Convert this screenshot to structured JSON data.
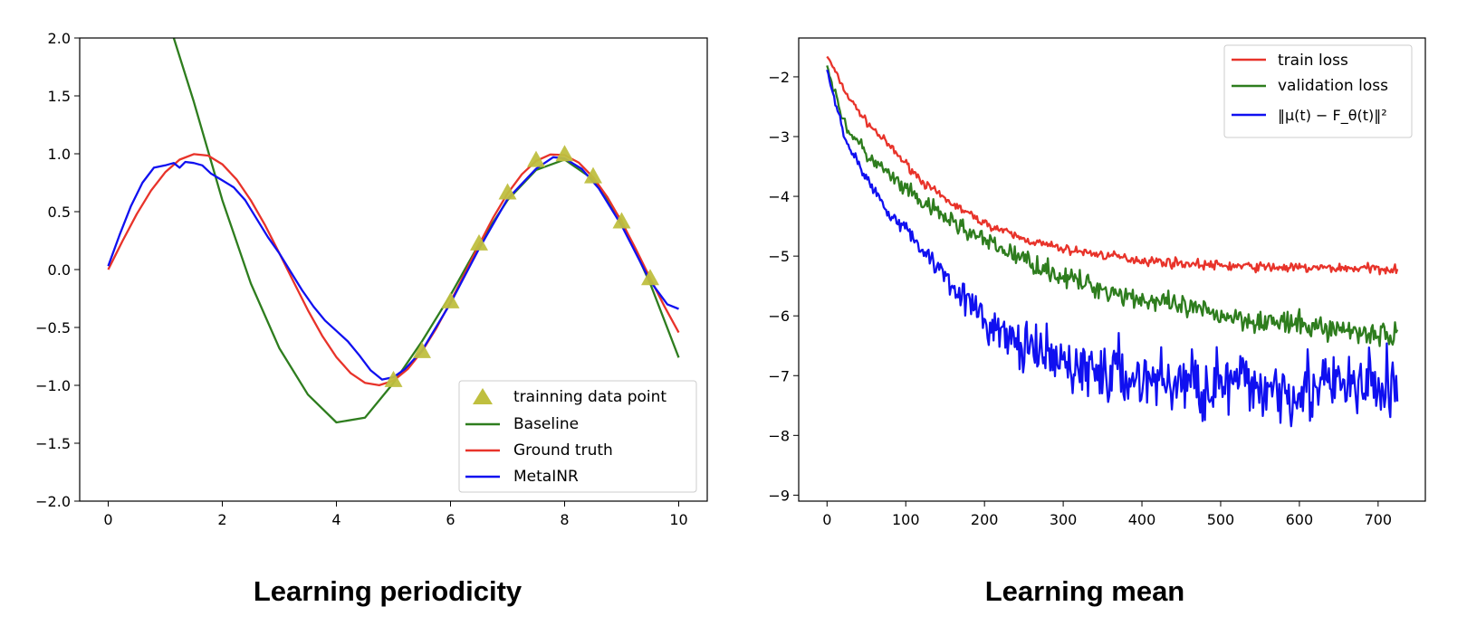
{
  "chart_data": [
    {
      "type": "line",
      "caption": "Learning periodicity",
      "xlim": [
        -0.5,
        10.5
      ],
      "ylim": [
        -2.0,
        2.0
      ],
      "xticks": [
        "0",
        "2",
        "4",
        "6",
        "8",
        "10"
      ],
      "yticks": [
        "2.0",
        "1.5",
        "1.0",
        "0.5",
        "0.0",
        "−0.5",
        "−1.0",
        "−1.5",
        "−2.0"
      ],
      "legend_position": "lower-right",
      "series": [
        {
          "name": "trainning data point",
          "kind": "scatter",
          "marker": "triangle",
          "color": "#bfbf3f",
          "x": [
            5.0,
            5.5,
            6.0,
            6.5,
            7.0,
            7.5,
            8.0,
            8.5,
            9.0,
            9.5
          ],
          "y": [
            -0.96,
            -0.71,
            -0.28,
            0.22,
            0.66,
            0.94,
            0.99,
            0.8,
            0.41,
            -0.08
          ]
        },
        {
          "name": "Baseline",
          "kind": "line",
          "color": "#2e7d1e",
          "x": [
            1.15,
            1.5,
            2.0,
            2.5,
            3.0,
            3.5,
            4.0,
            4.5,
            5.0,
            5.5,
            6.0,
            6.5,
            7.0,
            7.5,
            8.0,
            8.5,
            9.0,
            9.5,
            10.0
          ],
          "y": [
            2.0,
            1.45,
            0.6,
            -0.12,
            -0.68,
            -1.08,
            -1.32,
            -1.28,
            -0.98,
            -0.62,
            -0.22,
            0.22,
            0.6,
            0.86,
            0.95,
            0.78,
            0.42,
            -0.12,
            -0.76
          ]
        },
        {
          "name": "Ground truth",
          "kind": "line",
          "color": "#e8332a",
          "x": [
            0,
            0.25,
            0.5,
            0.75,
            1.0,
            1.25,
            1.5,
            1.75,
            2.0,
            2.25,
            2.5,
            2.75,
            3.0,
            3.25,
            3.5,
            3.75,
            4.0,
            4.25,
            4.5,
            4.75,
            5.0,
            5.25,
            5.5,
            5.75,
            6.0,
            6.25,
            6.5,
            6.75,
            7.0,
            7.25,
            7.5,
            7.75,
            8.0,
            8.25,
            8.5,
            8.75,
            9.0,
            9.25,
            9.5,
            9.75,
            10.0
          ],
          "y": [
            0.0,
            0.247,
            0.479,
            0.682,
            0.841,
            0.949,
            0.997,
            0.984,
            0.909,
            0.778,
            0.598,
            0.382,
            0.141,
            -0.108,
            -0.351,
            -0.572,
            -0.757,
            -0.895,
            -0.978,
            -0.999,
            -0.959,
            -0.859,
            -0.706,
            -0.508,
            -0.279,
            -0.033,
            0.215,
            0.451,
            0.657,
            0.823,
            0.938,
            0.994,
            0.989,
            0.923,
            0.798,
            0.624,
            0.412,
            0.174,
            -0.075,
            -0.319,
            -0.544
          ]
        },
        {
          "name": "MetaINR",
          "kind": "line",
          "color": "#1010f0",
          "x": [
            0,
            0.2,
            0.4,
            0.6,
            0.8,
            1.0,
            1.15,
            1.25,
            1.35,
            1.5,
            1.65,
            1.8,
            2.0,
            2.2,
            2.4,
            2.6,
            2.8,
            3.0,
            3.2,
            3.4,
            3.6,
            3.8,
            4.0,
            4.2,
            4.4,
            4.6,
            4.8,
            5.0,
            5.2,
            5.5,
            6.0,
            6.5,
            7.0,
            7.5,
            7.8,
            8.0,
            8.3,
            8.6,
            9.0,
            9.5,
            9.8,
            10.0
          ],
          "y": [
            0.03,
            0.3,
            0.55,
            0.75,
            0.88,
            0.9,
            0.92,
            0.88,
            0.93,
            0.92,
            0.9,
            0.83,
            0.77,
            0.71,
            0.6,
            0.44,
            0.28,
            0.14,
            -0.02,
            -0.18,
            -0.32,
            -0.44,
            -0.53,
            -0.62,
            -0.74,
            -0.87,
            -0.95,
            -0.93,
            -0.86,
            -0.7,
            -0.29,
            0.18,
            0.61,
            0.87,
            0.97,
            0.96,
            0.87,
            0.7,
            0.38,
            -0.1,
            -0.3,
            -0.34
          ]
        }
      ]
    },
    {
      "type": "line",
      "caption": "Learning mean",
      "xlim": [
        -36,
        760
      ],
      "ylim": [
        -9.1,
        -1.35
      ],
      "xticks": [
        "0",
        "100",
        "200",
        "300",
        "400",
        "500",
        "600",
        "700"
      ],
      "yticks": [
        "−2",
        "−3",
        "−4",
        "−5",
        "−6",
        "−7",
        "−8",
        "−9"
      ],
      "legend_position": "upper-right",
      "noisy_series": true,
      "series": [
        {
          "name": "train loss",
          "kind": "line",
          "color": "#e8332a",
          "x": [
            0,
            10,
            25,
            50,
            75,
            100,
            125,
            150,
            200,
            250,
            300,
            350,
            400,
            450,
            500,
            550,
            600,
            650,
            700,
            725
          ],
          "y": [
            -1.65,
            -1.9,
            -2.3,
            -2.75,
            -3.1,
            -3.45,
            -3.8,
            -4.05,
            -4.45,
            -4.72,
            -4.88,
            -4.98,
            -5.07,
            -5.12,
            -5.16,
            -5.18,
            -5.2,
            -5.2,
            -5.21,
            -5.21
          ],
          "noise_amplitude": [
            0.05,
            0.06,
            0.08,
            0.09,
            0.1,
            0.1,
            0.1,
            0.1,
            0.1,
            0.1,
            0.11,
            0.11,
            0.12,
            0.12,
            0.12,
            0.12,
            0.12,
            0.12,
            0.12,
            0.12
          ]
        },
        {
          "name": "validation loss",
          "kind": "line",
          "color": "#2e7d1e",
          "x": [
            0,
            10,
            25,
            50,
            75,
            100,
            125,
            150,
            200,
            250,
            300,
            350,
            400,
            450,
            500,
            550,
            600,
            650,
            700,
            725
          ],
          "y": [
            -1.8,
            -2.3,
            -2.85,
            -3.3,
            -3.6,
            -3.9,
            -4.15,
            -4.35,
            -4.75,
            -5.05,
            -5.35,
            -5.55,
            -5.72,
            -5.86,
            -5.98,
            -6.08,
            -6.16,
            -6.22,
            -6.3,
            -6.32
          ],
          "noise_amplitude": [
            0.08,
            0.12,
            0.18,
            0.2,
            0.22,
            0.22,
            0.23,
            0.24,
            0.24,
            0.25,
            0.26,
            0.27,
            0.28,
            0.28,
            0.29,
            0.3,
            0.3,
            0.3,
            0.32,
            0.32
          ]
        },
        {
          "name": "‖μ(t) − F_θ(t)‖²",
          "kind": "line",
          "color": "#1010f0",
          "x": [
            0,
            10,
            25,
            50,
            75,
            100,
            125,
            150,
            200,
            250,
            300,
            350,
            400,
            450,
            500,
            550,
            600,
            650,
            700,
            725
          ],
          "y": [
            -1.9,
            -2.4,
            -3.1,
            -3.7,
            -4.2,
            -4.55,
            -4.95,
            -5.3,
            -6.1,
            -6.55,
            -6.8,
            -6.95,
            -7.05,
            -7.12,
            -7.15,
            -7.18,
            -7.2,
            -7.2,
            -7.2,
            -7.2
          ],
          "noise_amplitude": [
            0.04,
            0.08,
            0.12,
            0.15,
            0.18,
            0.2,
            0.24,
            0.3,
            0.45,
            0.6,
            0.7,
            0.78,
            0.85,
            0.88,
            0.9,
            0.9,
            0.92,
            0.92,
            0.94,
            0.94
          ]
        }
      ]
    }
  ]
}
